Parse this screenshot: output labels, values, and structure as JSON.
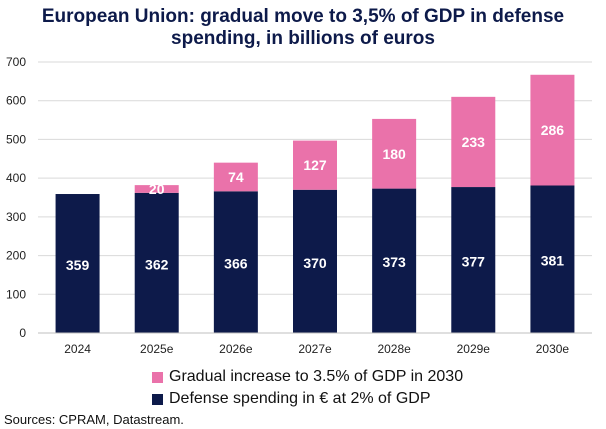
{
  "chart_data": {
    "type": "bar",
    "stacked": true,
    "title_lines": [
      "European Union: gradual move to 3,5% of GDP in defense",
      "spending, in billions of euros"
    ],
    "categories": [
      "2024",
      "2025e",
      "2026e",
      "2027e",
      "2028e",
      "2029e",
      "2030e"
    ],
    "series": [
      {
        "name": "Defense spending in € at 2% of GDP",
        "color": "#0d1a4a",
        "values": [
          359,
          362,
          366,
          370,
          373,
          377,
          381
        ],
        "labels": [
          "359",
          "362",
          "366",
          "370",
          "373",
          "377",
          "381"
        ]
      },
      {
        "name": "Gradual increase to 3.5% of GDP in 2030",
        "color": "#ea72aa",
        "values": [
          0,
          20,
          74,
          127,
          180,
          233,
          286
        ],
        "labels": [
          "",
          "20",
          "74",
          "127",
          "180",
          "233",
          "286"
        ]
      }
    ],
    "ylim": [
      0,
      700
    ],
    "yticks": [
      "0",
      "100",
      "200",
      "300",
      "400",
      "500",
      "600",
      "700"
    ],
    "grid": true,
    "legend_position": "bottom",
    "legend_order": [
      1,
      0
    ]
  },
  "source_text": "Sources: CPRAM, Datastream."
}
